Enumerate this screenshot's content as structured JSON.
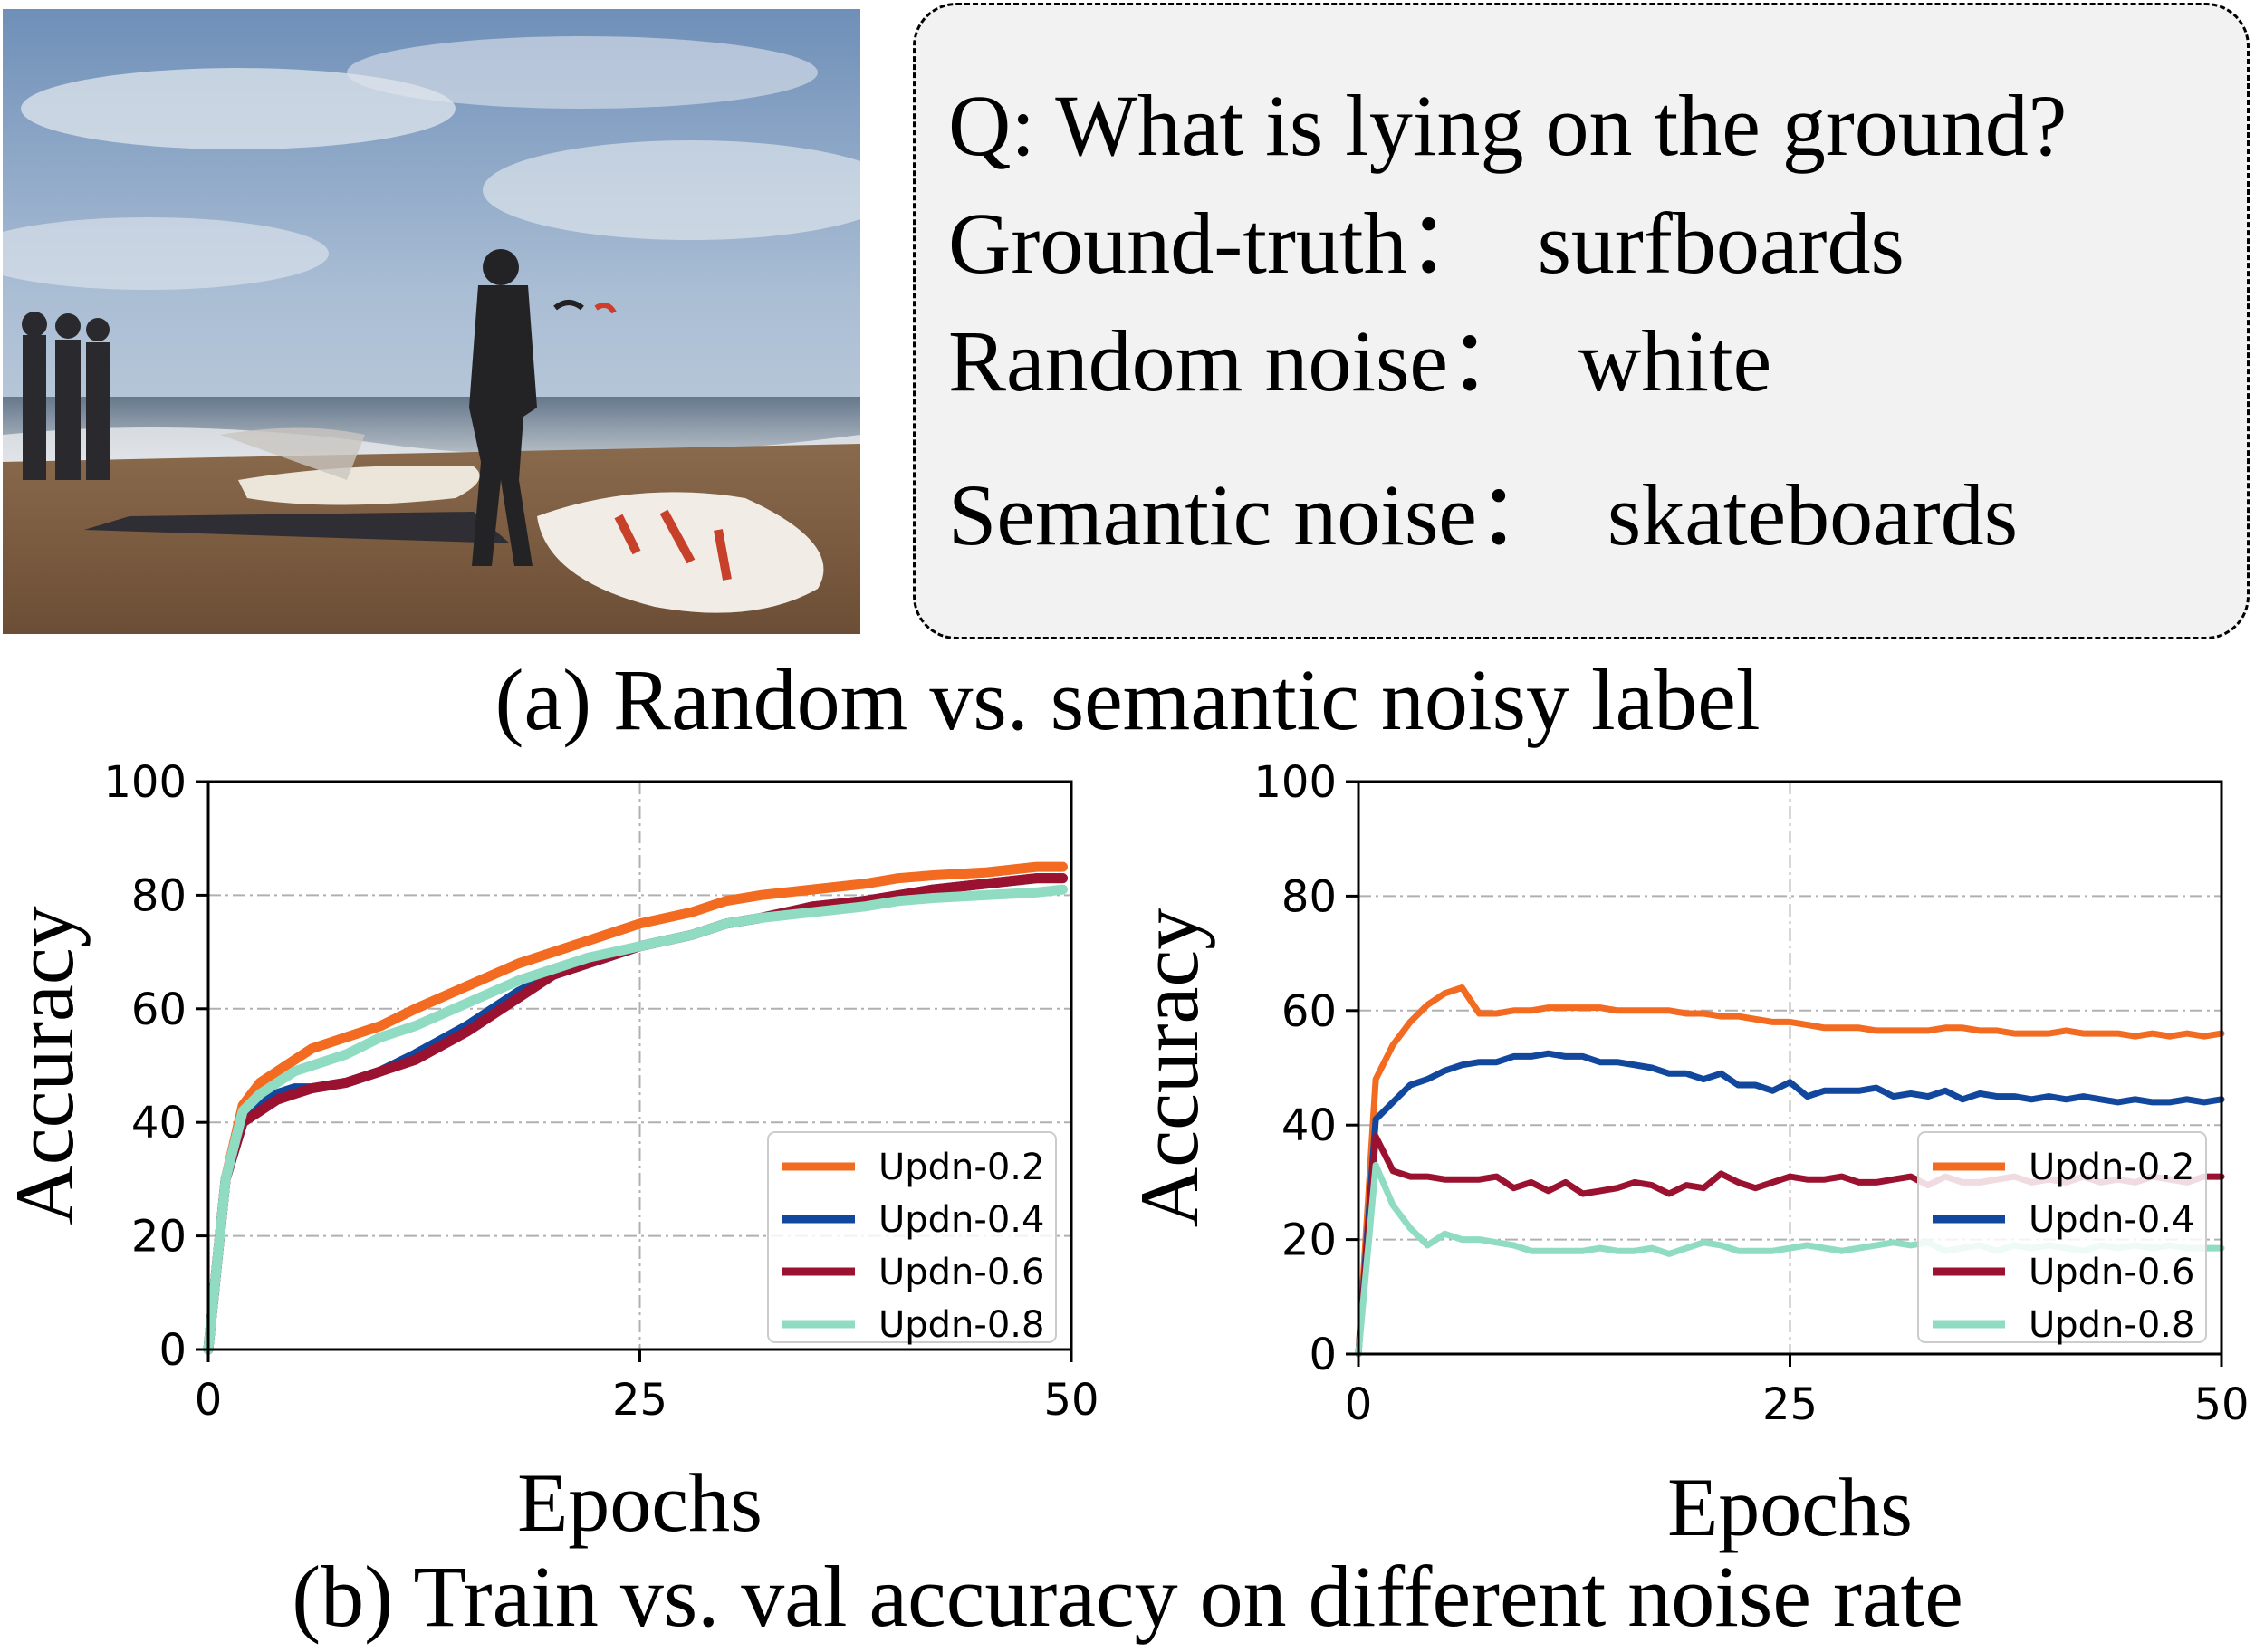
{
  "figure_a": {
    "question": "Q: What is lying on the ground?",
    "ground_truth": "Ground-truth：  surfboards",
    "random_noise": "Random noise：  white",
    "semantic_noise": "Semantic noise：  skateboards",
    "caption": "(a) Random vs. semantic noisy label"
  },
  "figure_b": {
    "caption": "(b) Train vs. val accuracy on different noise rate"
  },
  "colors": {
    "Updn-0.2": "#f26b21",
    "Updn-0.4": "#11479c",
    "Updn-0.6": "#9a1230",
    "Updn-0.8": "#8fdcc3"
  },
  "chart_data": [
    {
      "type": "line",
      "xlabel": "Epochs",
      "ylabel": "Accuracy",
      "xlim": [
        0,
        50
      ],
      "ylim": [
        0,
        100
      ],
      "xticks": [
        0,
        25,
        50
      ],
      "yticks": [
        0,
        20,
        40,
        60,
        80,
        100
      ],
      "grid": true,
      "legend": "bottom-right",
      "series": [
        {
          "name": "Updn-0.2",
          "x": [
            0,
            1,
            2,
            3,
            4,
            5,
            6,
            8,
            10,
            12,
            15,
            18,
            20,
            22,
            25,
            28,
            30,
            32,
            35,
            38,
            40,
            42,
            45,
            48,
            49.5
          ],
          "values": [
            0,
            30,
            43,
            47,
            49,
            51,
            53,
            55,
            57,
            60,
            64,
            68,
            70,
            72,
            75,
            77,
            79,
            80,
            81,
            82,
            83,
            83.5,
            84,
            85,
            85
          ]
        },
        {
          "name": "Updn-0.4",
          "x": [
            0,
            1,
            2,
            3,
            4,
            5,
            6,
            8,
            10,
            12,
            15,
            18,
            20,
            22,
            25,
            28,
            30,
            32,
            35,
            38,
            40,
            42,
            45,
            48,
            49.5
          ],
          "values": [
            0,
            30,
            40,
            43,
            45,
            46,
            46,
            47,
            49,
            52,
            57,
            63,
            66,
            68,
            71,
            73,
            75,
            76,
            78,
            79,
            80,
            81,
            82,
            83,
            83
          ]
        },
        {
          "name": "Updn-0.6",
          "x": [
            0,
            1,
            2,
            3,
            4,
            5,
            6,
            8,
            10,
            12,
            15,
            18,
            20,
            22,
            25,
            28,
            30,
            32,
            35,
            38,
            40,
            42,
            45,
            48,
            49.5
          ],
          "values": [
            0,
            30,
            40,
            42,
            44,
            45,
            46,
            47,
            49,
            51,
            56,
            62,
            66,
            68,
            71,
            73,
            75,
            76,
            78,
            79,
            80,
            81,
            82,
            83,
            83
          ]
        },
        {
          "name": "Updn-0.8",
          "x": [
            0,
            1,
            2,
            3,
            4,
            5,
            6,
            8,
            10,
            12,
            15,
            18,
            20,
            22,
            25,
            28,
            30,
            32,
            35,
            38,
            40,
            42,
            45,
            48,
            49.5
          ],
          "values": [
            0,
            30,
            42,
            45,
            47,
            49,
            50,
            52,
            55,
            57,
            61,
            65,
            67,
            69,
            71,
            73,
            75,
            76,
            77,
            78,
            79,
            79.5,
            80,
            80.5,
            81
          ]
        }
      ]
    },
    {
      "type": "line",
      "xlabel": "Epochs",
      "ylabel": "Accuracy",
      "xlim": [
        0,
        50
      ],
      "ylim": [
        0,
        100
      ],
      "xticks": [
        0,
        25,
        50
      ],
      "yticks": [
        0,
        20,
        40,
        60,
        80,
        100
      ],
      "grid": true,
      "legend": "bottom-right",
      "series": [
        {
          "name": "Updn-0.2",
          "x": [
            0,
            1,
            2,
            3,
            4,
            5,
            6,
            7,
            8,
            9,
            10,
            11,
            12,
            13,
            14,
            15,
            16,
            17,
            18,
            19,
            20,
            21,
            22,
            23,
            24,
            25,
            26,
            27,
            28,
            29,
            30,
            31,
            32,
            33,
            34,
            35,
            36,
            37,
            38,
            39,
            40,
            41,
            42,
            43,
            44,
            45,
            46,
            47,
            48,
            49,
            50
          ],
          "values": [
            0,
            48,
            54,
            58,
            61,
            63,
            64,
            59.5,
            59.5,
            60,
            60,
            60.5,
            60.5,
            60.5,
            60.5,
            60,
            60,
            60,
            60,
            59.5,
            59.5,
            59,
            59,
            58.5,
            58,
            58,
            57.5,
            57,
            57,
            57,
            56.5,
            56.5,
            56.5,
            56.5,
            57,
            57,
            56.5,
            56.5,
            56,
            56,
            56,
            56.5,
            56,
            56,
            56,
            55.5,
            56,
            55.5,
            56,
            55.5,
            56
          ]
        },
        {
          "name": "Updn-0.4",
          "x": [
            0,
            1,
            2,
            3,
            4,
            5,
            6,
            7,
            8,
            9,
            10,
            11,
            12,
            13,
            14,
            15,
            16,
            17,
            18,
            19,
            20,
            21,
            22,
            23,
            24,
            25,
            26,
            27,
            28,
            29,
            30,
            31,
            32,
            33,
            34,
            35,
            36,
            37,
            38,
            39,
            40,
            41,
            42,
            43,
            44,
            45,
            46,
            47,
            48,
            49,
            50
          ],
          "values": [
            0,
            41,
            44,
            47,
            48,
            49.5,
            50.5,
            51,
            51,
            52,
            52,
            52.5,
            52,
            52,
            51,
            51,
            50.5,
            50,
            49,
            49,
            48,
            49,
            47,
            47,
            46,
            47.5,
            45,
            46,
            46,
            46,
            46.5,
            45,
            45.5,
            45,
            46,
            44.5,
            45.5,
            45,
            45,
            44.5,
            45,
            44.5,
            45,
            44.5,
            44,
            44.5,
            44,
            44,
            44.5,
            44,
            44.5
          ]
        },
        {
          "name": "Updn-0.6",
          "x": [
            0,
            1,
            2,
            3,
            4,
            5,
            6,
            7,
            8,
            9,
            10,
            11,
            12,
            13,
            14,
            15,
            16,
            17,
            18,
            19,
            20,
            21,
            22,
            23,
            24,
            25,
            26,
            27,
            28,
            29,
            30,
            31,
            32,
            33,
            34,
            35,
            36,
            37,
            38,
            39,
            40,
            41,
            42,
            43,
            44,
            45,
            46,
            47,
            48,
            49,
            50
          ],
          "values": [
            0,
            38,
            32,
            31,
            31,
            30.5,
            30.5,
            30.5,
            31,
            29,
            30,
            28.5,
            30,
            28,
            28.5,
            29,
            30,
            29.5,
            28,
            29.5,
            29,
            31.5,
            30,
            29,
            30,
            31,
            30.5,
            30.5,
            31,
            30,
            30,
            30.5,
            31,
            29.5,
            31,
            30,
            30,
            30.5,
            31,
            30,
            30.5,
            30,
            31,
            30,
            30.5,
            30,
            31,
            30.5,
            30,
            31,
            31
          ]
        },
        {
          "name": "Updn-0.8",
          "x": [
            0,
            1,
            2,
            3,
            4,
            5,
            6,
            7,
            8,
            9,
            10,
            11,
            12,
            13,
            14,
            15,
            16,
            17,
            18,
            19,
            20,
            21,
            22,
            23,
            24,
            25,
            26,
            27,
            28,
            29,
            30,
            31,
            32,
            33,
            34,
            35,
            36,
            37,
            38,
            39,
            40,
            41,
            42,
            43,
            44,
            45,
            46,
            47,
            48,
            49,
            50
          ],
          "values": [
            0,
            33,
            26,
            22,
            19,
            21,
            20,
            20,
            19.5,
            19,
            18,
            18,
            18,
            18,
            18.5,
            18,
            18,
            18.5,
            17.5,
            18.5,
            19.5,
            19,
            18,
            18,
            18,
            18.5,
            19,
            18.5,
            18,
            18.5,
            19,
            19.5,
            19,
            19.5,
            18,
            18.5,
            19,
            18,
            19,
            18.5,
            19,
            18.5,
            18,
            19,
            18.5,
            19,
            18.5,
            19,
            18.5,
            18.5,
            18.5
          ]
        }
      ]
    }
  ]
}
